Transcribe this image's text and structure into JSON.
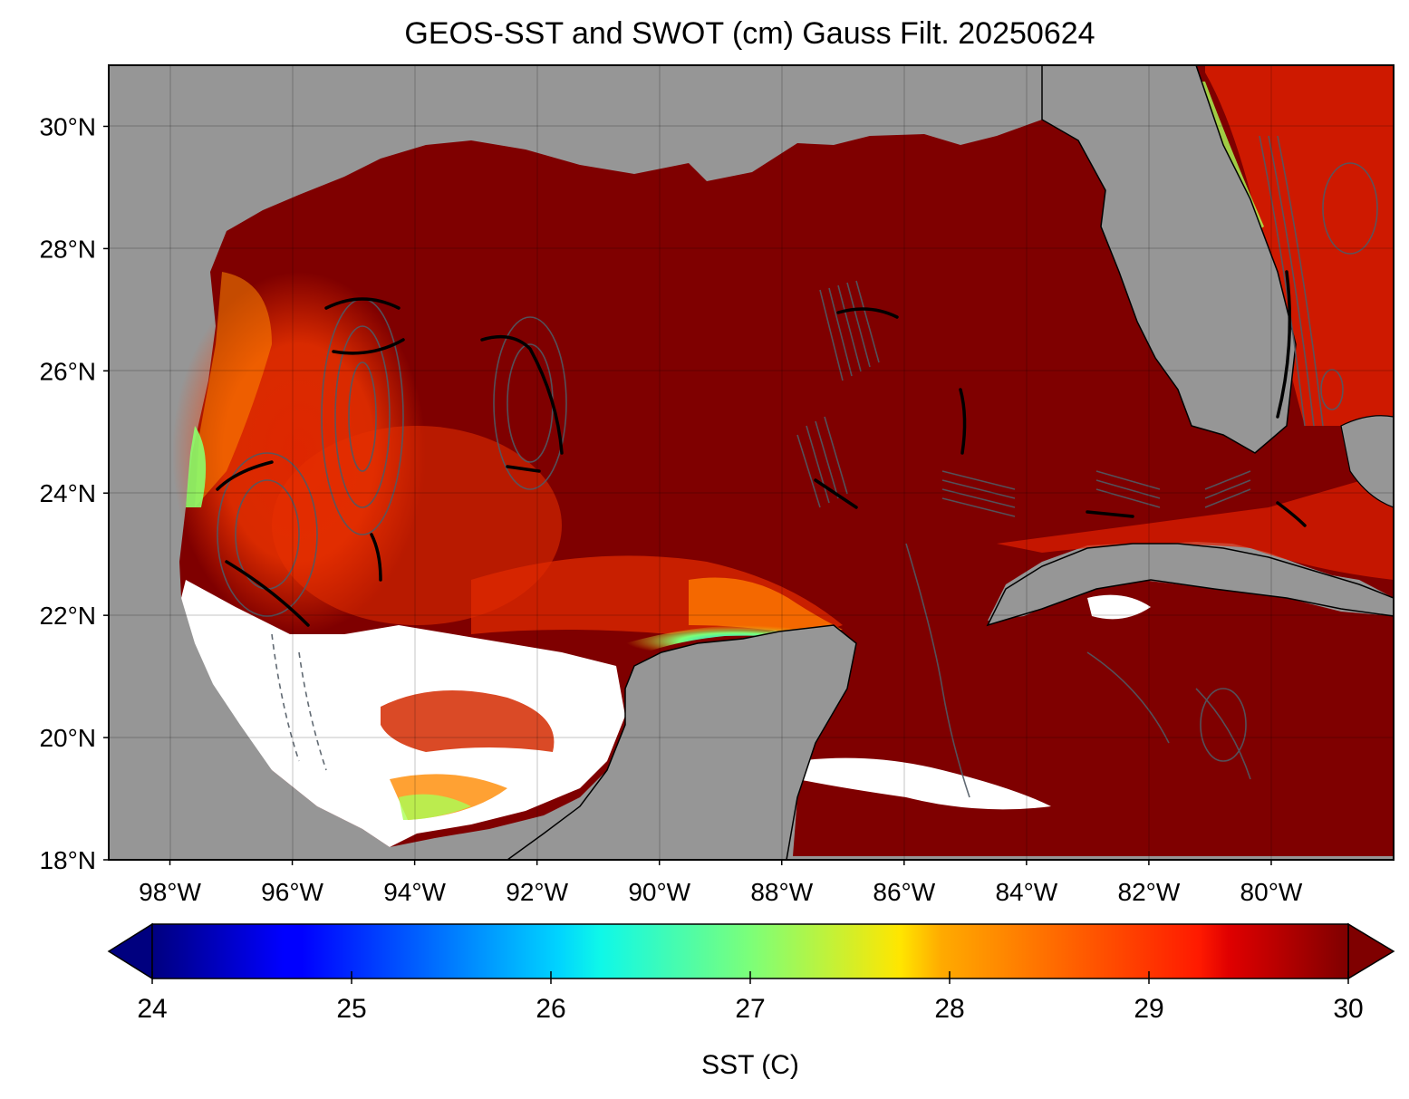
{
  "title": "GEOS-SST  and SWOT (cm) Gauss Filt. 20250624",
  "map": {
    "lon_range": [
      -99.0,
      -78.0
    ],
    "lat_range": [
      18.0,
      31.0
    ],
    "lat_ticks": [
      {
        "value": 30,
        "label": "30°N"
      },
      {
        "value": 28,
        "label": "28°N"
      },
      {
        "value": 26,
        "label": "26°N"
      },
      {
        "value": 24,
        "label": "24°N"
      },
      {
        "value": 22,
        "label": "22°N"
      },
      {
        "value": 20,
        "label": "20°N"
      },
      {
        "value": 18,
        "label": "18°N"
      }
    ],
    "lon_ticks": [
      {
        "value": -98,
        "label": "98°W"
      },
      {
        "value": -96,
        "label": "96°W"
      },
      {
        "value": -94,
        "label": "94°W"
      },
      {
        "value": -92,
        "label": "92°W"
      },
      {
        "value": -90,
        "label": "90°W"
      },
      {
        "value": -88,
        "label": "88°W"
      },
      {
        "value": -86,
        "label": "86°W"
      },
      {
        "value": -84,
        "label": "84°W"
      },
      {
        "value": -82,
        "label": "82°W"
      },
      {
        "value": -80,
        "label": "80°W"
      }
    ],
    "colors": {
      "land": "#969696",
      "ocean_warm": "#7f0000",
      "no_data": "#ffffff",
      "contour": "#505a64"
    }
  },
  "colorbar": {
    "label": "SST (C)",
    "range": [
      24,
      30
    ],
    "colormap": "jet",
    "extend": "both",
    "ticks": [
      {
        "value": 24,
        "label": "24"
      },
      {
        "value": 25,
        "label": "25"
      },
      {
        "value": 26,
        "label": "26"
      },
      {
        "value": 27,
        "label": "27"
      },
      {
        "value": 28,
        "label": "28"
      },
      {
        "value": 29,
        "label": "29"
      },
      {
        "value": 30,
        "label": "30"
      }
    ]
  }
}
